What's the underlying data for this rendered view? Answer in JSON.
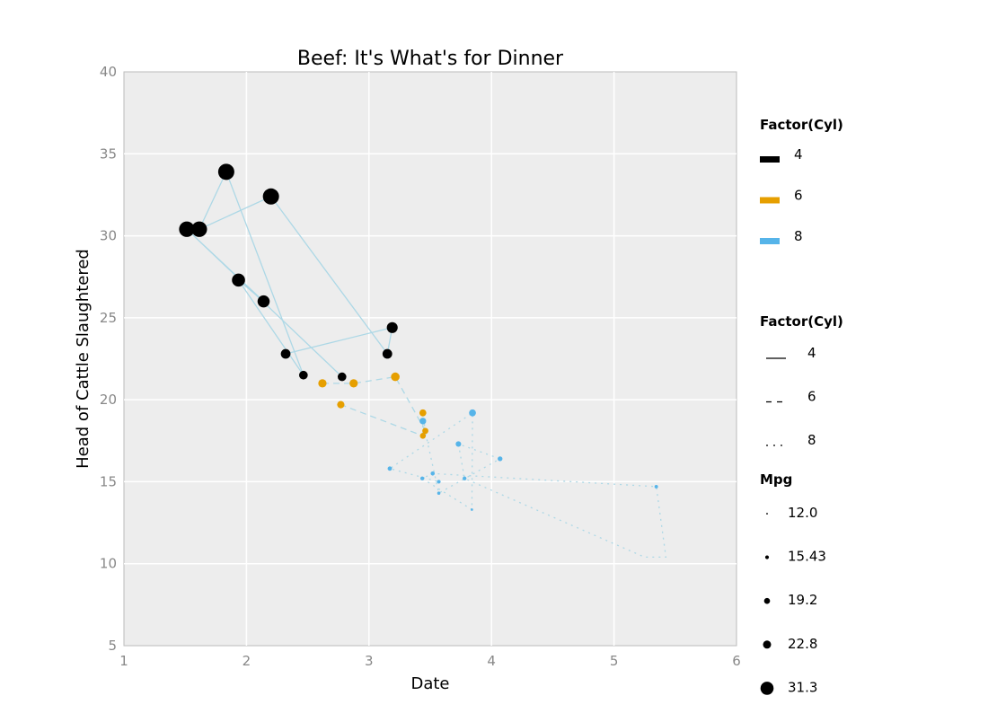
{
  "chart_data": {
    "type": "scatter",
    "title": "Beef: It's What's for Dinner",
    "xlabel": "Date",
    "ylabel": "Head of Cattle Slaughtered",
    "xlim": [
      1,
      6
    ],
    "ylim": [
      5,
      40
    ],
    "xticks": [
      1,
      2,
      3,
      4,
      5,
      6
    ],
    "yticks": [
      5,
      10,
      15,
      20,
      25,
      30,
      35,
      40
    ],
    "grid": true,
    "background_color": "#ededed",
    "grid_color": "#ffffff",
    "line_color": "#add8e6",
    "legend_placement": "right",
    "legends": [
      {
        "title": "Factor(Cyl)",
        "kind": "color",
        "entries": [
          {
            "label": "4",
            "color": "#000000"
          },
          {
            "label": "6",
            "color": "#e69f00"
          },
          {
            "label": "8",
            "color": "#56b4e9"
          }
        ]
      },
      {
        "title": "Factor(Cyl)",
        "kind": "linetype",
        "entries": [
          {
            "label": "4",
            "dash": "solid"
          },
          {
            "label": "6",
            "dash": "dashed"
          },
          {
            "label": "8",
            "dash": "dotted"
          }
        ]
      },
      {
        "title": "Mpg",
        "kind": "size",
        "entries": [
          {
            "label": "12.0",
            "value": 12.0
          },
          {
            "label": "15.43",
            "value": 15.43
          },
          {
            "label": "19.2",
            "value": 19.2
          },
          {
            "label": "22.8",
            "value": 22.8
          },
          {
            "label": "31.3",
            "value": 31.3
          }
        ]
      }
    ],
    "series": [
      {
        "group": "4",
        "color": "#000000",
        "dash": "solid",
        "points": [
          {
            "x": 2.32,
            "y": 22.8
          },
          {
            "x": 3.19,
            "y": 24.4
          },
          {
            "x": 3.15,
            "y": 22.8
          },
          {
            "x": 2.2,
            "y": 32.4
          },
          {
            "x": 1.615,
            "y": 30.4
          },
          {
            "x": 1.835,
            "y": 33.9
          },
          {
            "x": 2.465,
            "y": 21.5
          },
          {
            "x": 1.935,
            "y": 27.3
          },
          {
            "x": 2.14,
            "y": 26.0
          },
          {
            "x": 1.513,
            "y": 30.4
          },
          {
            "x": 2.78,
            "y": 21.4
          }
        ]
      },
      {
        "group": "6",
        "color": "#e69f00",
        "dash": "dashed",
        "points": [
          {
            "x": 2.62,
            "y": 21.0
          },
          {
            "x": 2.875,
            "y": 21.0
          },
          {
            "x": 3.215,
            "y": 21.4
          },
          {
            "x": 3.46,
            "y": 18.1
          },
          {
            "x": 3.44,
            "y": 19.2
          },
          {
            "x": 3.44,
            "y": 17.8
          },
          {
            "x": 2.77,
            "y": 19.7
          }
        ]
      },
      {
        "group": "8",
        "color": "#56b4e9",
        "dash": "dotted",
        "points": [
          {
            "x": 3.44,
            "y": 18.7
          },
          {
            "x": 3.57,
            "y": 14.3
          },
          {
            "x": 4.07,
            "y": 16.4
          },
          {
            "x": 3.73,
            "y": 17.3
          },
          {
            "x": 3.78,
            "y": 15.2
          },
          {
            "x": 5.25,
            "y": 10.4
          },
          {
            "x": 5.424,
            "y": 10.4
          },
          {
            "x": 5.345,
            "y": 14.7
          },
          {
            "x": 3.52,
            "y": 15.5
          },
          {
            "x": 3.435,
            "y": 15.2
          },
          {
            "x": 3.84,
            "y": 13.3
          },
          {
            "x": 3.845,
            "y": 19.2
          },
          {
            "x": 3.17,
            "y": 15.8
          },
          {
            "x": 3.57,
            "y": 15.0
          }
        ],
        "hidden_marker_indices": [
          5,
          6
        ]
      }
    ]
  }
}
